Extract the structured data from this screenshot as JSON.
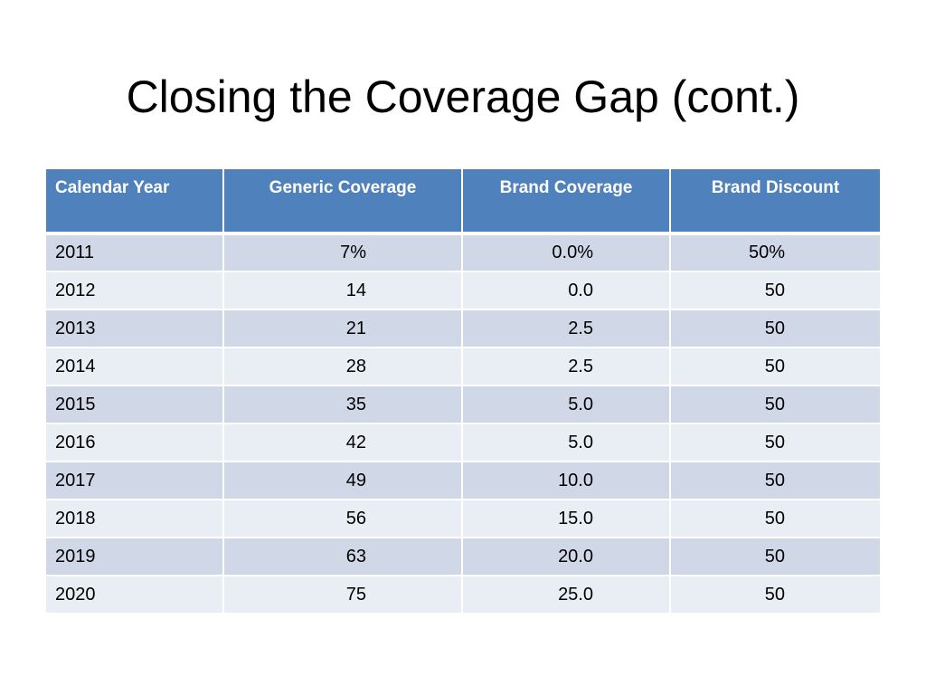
{
  "slide": {
    "title": "Closing the Coverage Gap (cont.)"
  },
  "table": {
    "headers": [
      "Calendar Year",
      "Generic Coverage",
      "Brand Coverage",
      "Brand Discount"
    ],
    "rows": [
      {
        "year": "2011",
        "generic": "7%",
        "brand": "0.0%",
        "discount": "50%"
      },
      {
        "year": "2012",
        "generic": "14",
        "brand": "0.0",
        "discount": "50"
      },
      {
        "year": "2013",
        "generic": "21",
        "brand": "2.5",
        "discount": "50"
      },
      {
        "year": "2014",
        "generic": "28",
        "brand": "2.5",
        "discount": "50"
      },
      {
        "year": "2015",
        "generic": "35",
        "brand": "5.0",
        "discount": "50"
      },
      {
        "year": "2016",
        "generic": "42",
        "brand": "5.0",
        "discount": "50"
      },
      {
        "year": "2017",
        "generic": "49",
        "brand": "10.0",
        "discount": "50"
      },
      {
        "year": "2018",
        "generic": "56",
        "brand": "15.0",
        "discount": "50"
      },
      {
        "year": "2019",
        "generic": "63",
        "brand": "20.0",
        "discount": "50"
      },
      {
        "year": "2020",
        "generic": "75",
        "brand": "25.0",
        "discount": "50"
      }
    ]
  },
  "colors": {
    "header_bg": "#4f81bd",
    "row_odd_bg": "#d0d8e8",
    "row_even_bg": "#e9edf4"
  }
}
